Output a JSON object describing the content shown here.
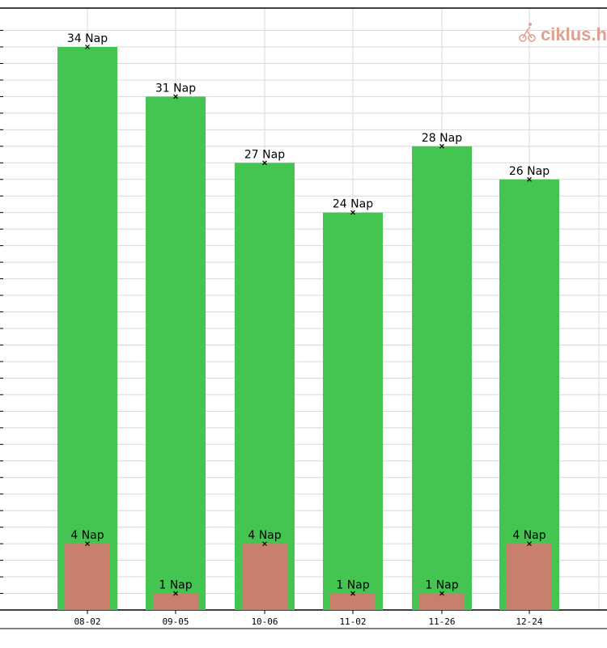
{
  "chart_data": {
    "type": "bar",
    "categories": [
      "08-02",
      "09-05",
      "10-06",
      "11-02",
      "11-26",
      "12-24"
    ],
    "series": [
      {
        "values": [
          34,
          31,
          27,
          24,
          28,
          26
        ],
        "labels": [
          "34 Nap",
          "31 Nap",
          "27 Nap",
          "24 Nap",
          "28 Nap",
          "26 Nap"
        ],
        "color": "#44c551"
      },
      {
        "values": [
          4,
          1,
          4,
          1,
          1,
          4
        ],
        "labels": [
          "4 Nap",
          "1 Nap",
          "4 Nap",
          "1 Nap",
          "1 Nap",
          "4 Nap"
        ],
        "color": "#c8806c"
      }
    ],
    "ylim": [
      0,
      35
    ],
    "y_step": 1,
    "grid": true,
    "x_gridlines": true
  },
  "watermark": {
    "text": "ciklus.hu",
    "color": "#e0a090"
  }
}
